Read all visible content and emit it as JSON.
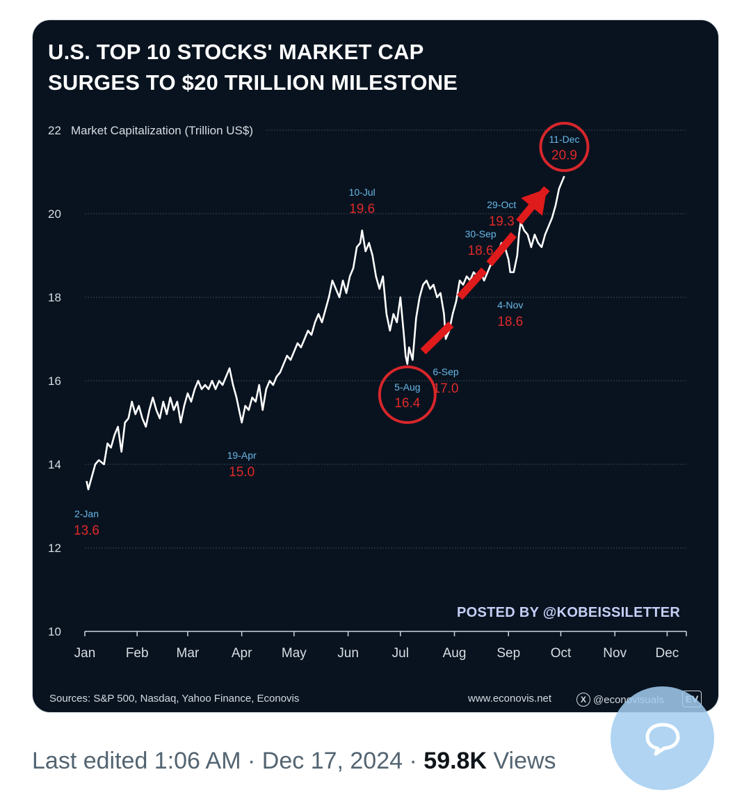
{
  "post": {
    "meta": {
      "edited_label": "Last edited 1:06 AM",
      "separator": "·",
      "date": "Dec 17, 2024",
      "views_count": "59.8K",
      "views_label": "Views"
    }
  },
  "infographic": {
    "title_line1": "U.S. TOP 10 STOCKS' MARKET CAP",
    "title_line2": "SURGES TO $20 TRILLION MILESTONE",
    "posted_by": "POSTED BY @KOBEISSILETTER",
    "sources": "Sources: S&P 500, Nasdaq, Yahoo Finance, Econovis",
    "website": "www.econovis.net",
    "social_handle": "@econovisuals",
    "brand_mark": "EV",
    "colors": {
      "background": "#08131f",
      "line": "#ffffff",
      "date_label": "#6ab8e8",
      "value_label": "#e02a2a",
      "arrow": "#e01b1b",
      "circle": "#d8262b"
    }
  },
  "chart_data": {
    "type": "line",
    "title": "U.S. TOP 10 STOCKS' MARKET CAP SURGES TO $20 TRILLION MILESTONE",
    "ylabel": "Market Capitalization (Trillion US$)",
    "xlabel": "",
    "ylim": [
      10,
      22
    ],
    "yticks": [
      10,
      12,
      14,
      16,
      18,
      20,
      22
    ],
    "xlim": [
      0,
      345
    ],
    "months": [
      {
        "label": "Jan",
        "day": 0
      },
      {
        "label": "Feb",
        "day": 30
      },
      {
        "label": "Mar",
        "day": 59
      },
      {
        "label": "Apr",
        "day": 90
      },
      {
        "label": "May",
        "day": 120
      },
      {
        "label": "Jun",
        "day": 151
      },
      {
        "label": "Jul",
        "day": 181
      },
      {
        "label": "Aug",
        "day": 212
      },
      {
        "label": "Sep",
        "day": 243
      },
      {
        "label": "Oct",
        "day": 273
      },
      {
        "label": "Nov",
        "day": 304
      },
      {
        "label": "Dec",
        "day": 334
      }
    ],
    "grid": true,
    "series": [
      {
        "points": [
          [
            1,
            13.6
          ],
          [
            2,
            13.4
          ],
          [
            4,
            13.7
          ],
          [
            6,
            14.0
          ],
          [
            8,
            14.1
          ],
          [
            11,
            14.0
          ],
          [
            13,
            14.5
          ],
          [
            15,
            14.4
          ],
          [
            17,
            14.7
          ],
          [
            19,
            14.9
          ],
          [
            21,
            14.3
          ],
          [
            23,
            15.0
          ],
          [
            25,
            15.1
          ],
          [
            27,
            15.5
          ],
          [
            29,
            15.2
          ],
          [
            31,
            15.4
          ],
          [
            33,
            15.1
          ],
          [
            35,
            14.9
          ],
          [
            37,
            15.3
          ],
          [
            39,
            15.6
          ],
          [
            41,
            15.3
          ],
          [
            43,
            15.1
          ],
          [
            45,
            15.5
          ],
          [
            47,
            15.2
          ],
          [
            49,
            15.6
          ],
          [
            51,
            15.3
          ],
          [
            53,
            15.5
          ],
          [
            55,
            15.0
          ],
          [
            57,
            15.4
          ],
          [
            59,
            15.7
          ],
          [
            61,
            15.5
          ],
          [
            63,
            15.8
          ],
          [
            65,
            16.0
          ],
          [
            67,
            15.8
          ],
          [
            69,
            15.9
          ],
          [
            71,
            15.8
          ],
          [
            73,
            16.0
          ],
          [
            75,
            15.8
          ],
          [
            77,
            16.0
          ],
          [
            79,
            15.9
          ],
          [
            81,
            16.1
          ],
          [
            83,
            16.3
          ],
          [
            85,
            15.9
          ],
          [
            87,
            15.6
          ],
          [
            89,
            15.2
          ],
          [
            90,
            15.0
          ],
          [
            92,
            15.4
          ],
          [
            94,
            15.3
          ],
          [
            96,
            15.6
          ],
          [
            98,
            15.5
          ],
          [
            100,
            15.9
          ],
          [
            102,
            15.3
          ],
          [
            104,
            15.8
          ],
          [
            106,
            16.0
          ],
          [
            108,
            15.9
          ],
          [
            110,
            16.1
          ],
          [
            112,
            16.2
          ],
          [
            114,
            16.4
          ],
          [
            116,
            16.6
          ],
          [
            118,
            16.5
          ],
          [
            120,
            16.7
          ],
          [
            122,
            16.9
          ],
          [
            124,
            16.8
          ],
          [
            126,
            17.0
          ],
          [
            128,
            17.2
          ],
          [
            130,
            17.1
          ],
          [
            132,
            17.4
          ],
          [
            134,
            17.6
          ],
          [
            136,
            17.4
          ],
          [
            138,
            17.7
          ],
          [
            140,
            18.0
          ],
          [
            142,
            18.4
          ],
          [
            144,
            18.2
          ],
          [
            146,
            18.0
          ],
          [
            148,
            18.4
          ],
          [
            150,
            18.1
          ],
          [
            152,
            18.5
          ],
          [
            154,
            18.7
          ],
          [
            156,
            19.2
          ],
          [
            158,
            19.3
          ],
          [
            159,
            19.6
          ],
          [
            161,
            19.1
          ],
          [
            163,
            19.3
          ],
          [
            165,
            19.0
          ],
          [
            167,
            18.5
          ],
          [
            169,
            18.2
          ],
          [
            171,
            18.5
          ],
          [
            173,
            17.6
          ],
          [
            175,
            17.2
          ],
          [
            177,
            17.6
          ],
          [
            179,
            17.4
          ],
          [
            181,
            18.0
          ],
          [
            183,
            17.1
          ],
          [
            184,
            16.6
          ],
          [
            185,
            16.4
          ],
          [
            186,
            16.8
          ],
          [
            188,
            16.5
          ],
          [
            190,
            17.5
          ],
          [
            192,
            18.0
          ],
          [
            194,
            18.3
          ],
          [
            196,
            18.4
          ],
          [
            198,
            18.2
          ],
          [
            200,
            18.3
          ],
          [
            202,
            18.0
          ],
          [
            204,
            18.1
          ],
          [
            206,
            17.6
          ],
          [
            207,
            17.0
          ],
          [
            209,
            17.2
          ],
          [
            211,
            17.6
          ],
          [
            213,
            17.9
          ],
          [
            215,
            18.4
          ],
          [
            217,
            18.3
          ],
          [
            219,
            18.5
          ],
          [
            221,
            18.4
          ],
          [
            223,
            18.6
          ],
          [
            225,
            18.5
          ],
          [
            227,
            18.6
          ],
          [
            229,
            18.4
          ],
          [
            231,
            18.6
          ],
          [
            233,
            18.8
          ],
          [
            235,
            18.9
          ],
          [
            237,
            19.1
          ],
          [
            239,
            19.3
          ],
          [
            241,
            19.2
          ],
          [
            243,
            18.9
          ],
          [
            244,
            18.6
          ],
          [
            246,
            18.6
          ],
          [
            248,
            19.0
          ],
          [
            249,
            19.5
          ],
          [
            250,
            19.8
          ],
          [
            252,
            19.6
          ],
          [
            254,
            19.5
          ],
          [
            256,
            19.2
          ],
          [
            258,
            19.5
          ],
          [
            260,
            19.3
          ],
          [
            262,
            19.2
          ],
          [
            264,
            19.5
          ],
          [
            266,
            19.7
          ],
          [
            268,
            19.9
          ],
          [
            270,
            20.2
          ],
          [
            272,
            20.6
          ],
          [
            274,
            20.8
          ],
          [
            275,
            20.9
          ]
        ]
      }
    ],
    "annotations": [
      {
        "date": "2-Jan",
        "value": "13.6",
        "day": 1,
        "y": 13.6,
        "placement": "below"
      },
      {
        "date": "19-Apr",
        "value": "15.0",
        "day": 90,
        "y": 15.0,
        "placement": "below"
      },
      {
        "date": "10-Jul",
        "value": "19.6",
        "day": 159,
        "y": 19.6,
        "placement": "above"
      },
      {
        "date": "5-Aug",
        "value": "16.4",
        "day": 185,
        "y": 16.4,
        "placement": "inside-circle"
      },
      {
        "date": "6-Sep",
        "value": "17.0",
        "day": 207,
        "y": 17.0,
        "placement": "below"
      },
      {
        "date": "30-Sep",
        "value": "18.6",
        "day": 227,
        "y": 18.6,
        "placement": "above"
      },
      {
        "date": "29-Oct",
        "value": "19.3",
        "day": 239,
        "y": 19.3,
        "placement": "above"
      },
      {
        "date": "4-Nov",
        "value": "18.6",
        "day": 244,
        "y": 18.6,
        "placement": "below"
      },
      {
        "date": "11-Dec",
        "value": "20.9",
        "day": 275,
        "y": 20.9,
        "placement": "inside-circle"
      }
    ]
  }
}
